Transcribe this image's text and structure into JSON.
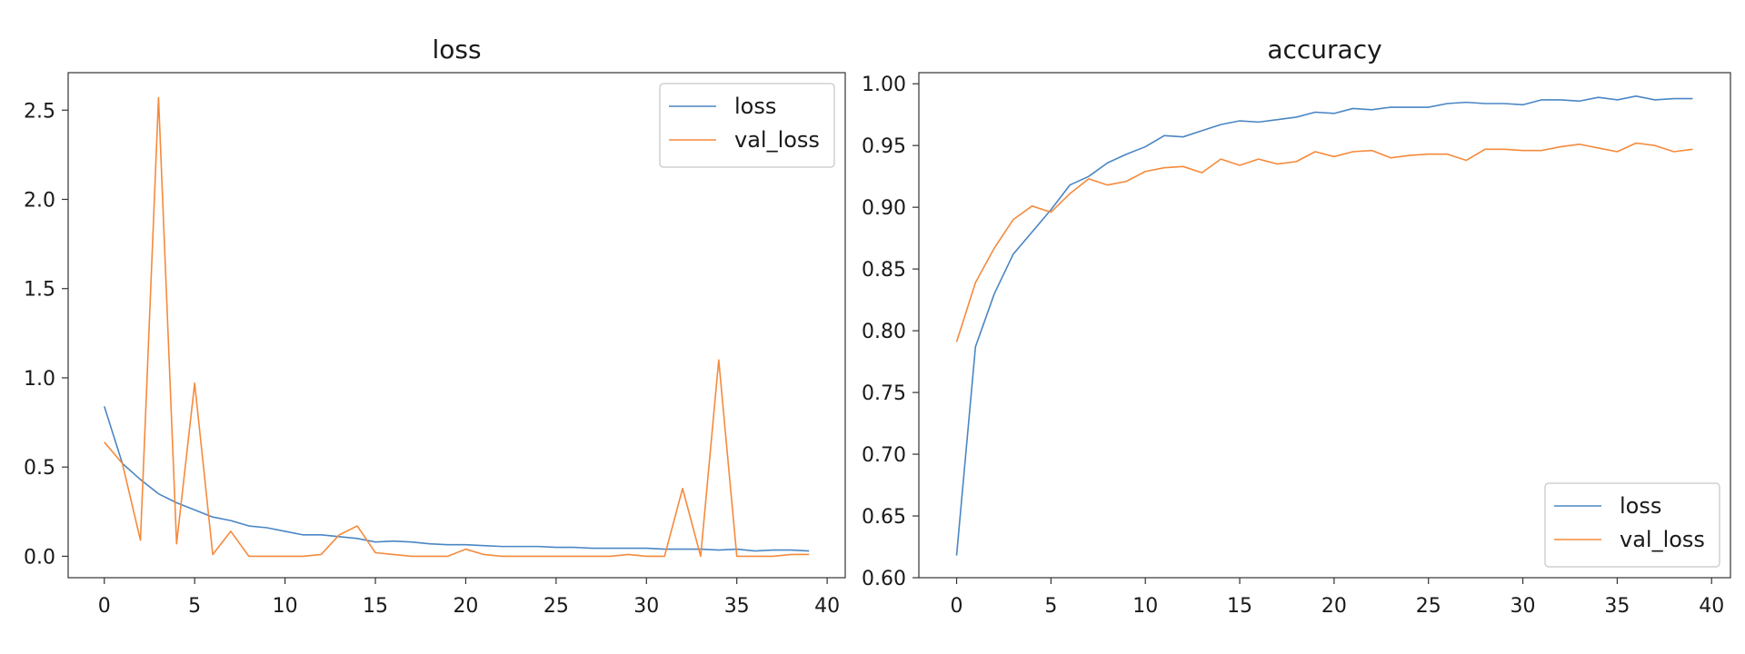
{
  "colors": {
    "series_1": "#4a86c4",
    "series_2": "#f58a3c",
    "axes": "#333333",
    "background": "#ffffff"
  },
  "chart_data": [
    {
      "type": "line",
      "title": "loss",
      "xlabel": "",
      "ylabel": "",
      "xlim": [
        -2,
        41
      ],
      "ylim": [
        -0.12,
        2.71
      ],
      "xticks": [
        0,
        5,
        10,
        15,
        20,
        25,
        30,
        35,
        40
      ],
      "yticks": [
        0.0,
        0.5,
        1.0,
        1.5,
        2.0,
        2.5
      ],
      "ytick_labels": [
        "0.0",
        "0.5",
        "1.0",
        "1.5",
        "2.0",
        "2.5"
      ],
      "grid": false,
      "legend_position": "top-right",
      "x": [
        0,
        1,
        2,
        3,
        4,
        5,
        6,
        7,
        8,
        9,
        10,
        11,
        12,
        13,
        14,
        15,
        16,
        17,
        18,
        19,
        20,
        21,
        22,
        23,
        24,
        25,
        26,
        27,
        28,
        29,
        30,
        31,
        32,
        33,
        34,
        35,
        36,
        37,
        38,
        39
      ],
      "series": [
        {
          "name": "loss",
          "values": [
            0.84,
            0.52,
            0.43,
            0.35,
            0.3,
            0.26,
            0.22,
            0.2,
            0.17,
            0.16,
            0.14,
            0.12,
            0.12,
            0.11,
            0.1,
            0.08,
            0.085,
            0.08,
            0.07,
            0.065,
            0.065,
            0.06,
            0.055,
            0.055,
            0.055,
            0.05,
            0.05,
            0.045,
            0.045,
            0.045,
            0.045,
            0.04,
            0.04,
            0.04,
            0.035,
            0.04,
            0.03,
            0.035,
            0.035,
            0.03
          ]
        },
        {
          "name": "val_loss",
          "values": [
            0.64,
            0.52,
            0.09,
            2.57,
            0.07,
            0.97,
            0.01,
            0.14,
            0.0,
            0.0,
            0.0,
            0.0,
            0.01,
            0.12,
            0.17,
            0.02,
            0.01,
            0.0,
            0.0,
            0.0,
            0.04,
            0.01,
            0.0,
            0.0,
            0.0,
            0.0,
            0.0,
            0.0,
            0.0,
            0.01,
            0.0,
            0.0,
            0.38,
            0.0,
            1.1,
            0.0,
            0.0,
            0.0,
            0.01,
            0.01
          ]
        }
      ]
    },
    {
      "type": "line",
      "title": "accuracy",
      "xlabel": "",
      "ylabel": "",
      "xlim": [
        -2,
        41
      ],
      "ylim": [
        0.6,
        1.009
      ],
      "xticks": [
        0,
        5,
        10,
        15,
        20,
        25,
        30,
        35,
        40
      ],
      "yticks": [
        0.6,
        0.65,
        0.7,
        0.75,
        0.8,
        0.85,
        0.9,
        0.95,
        1.0
      ],
      "ytick_labels": [
        "0.60",
        "0.65",
        "0.70",
        "0.75",
        "0.80",
        "0.85",
        "0.90",
        "0.95",
        "1.00"
      ],
      "grid": false,
      "legend_position": "bottom-right",
      "x": [
        0,
        1,
        2,
        3,
        4,
        5,
        6,
        7,
        8,
        9,
        10,
        11,
        12,
        13,
        14,
        15,
        16,
        17,
        18,
        19,
        20,
        21,
        22,
        23,
        24,
        25,
        26,
        27,
        28,
        29,
        30,
        31,
        32,
        33,
        34,
        35,
        36,
        37,
        38,
        39
      ],
      "series": [
        {
          "name": "loss",
          "values": [
            0.618,
            0.787,
            0.83,
            0.862,
            0.88,
            0.898,
            0.918,
            0.925,
            0.936,
            0.943,
            0.949,
            0.958,
            0.957,
            0.962,
            0.967,
            0.97,
            0.969,
            0.971,
            0.973,
            0.977,
            0.976,
            0.98,
            0.979,
            0.981,
            0.981,
            0.981,
            0.984,
            0.985,
            0.984,
            0.984,
            0.983,
            0.987,
            0.987,
            0.986,
            0.989,
            0.987,
            0.99,
            0.987,
            0.988,
            0.988
          ]
        },
        {
          "name": "val_loss",
          "values": [
            0.791,
            0.839,
            0.867,
            0.89,
            0.901,
            0.896,
            0.911,
            0.923,
            0.918,
            0.921,
            0.929,
            0.932,
            0.933,
            0.928,
            0.939,
            0.934,
            0.939,
            0.935,
            0.937,
            0.945,
            0.941,
            0.945,
            0.946,
            0.94,
            0.942,
            0.943,
            0.943,
            0.938,
            0.947,
            0.947,
            0.946,
            0.946,
            0.949,
            0.951,
            0.948,
            0.945,
            0.952,
            0.95,
            0.945,
            0.947
          ]
        }
      ]
    }
  ]
}
